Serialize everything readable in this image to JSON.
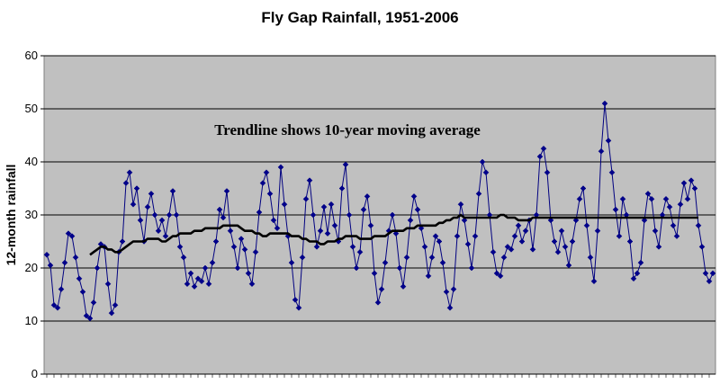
{
  "chart_data": {
    "type": "line",
    "title": "Fly Gap Rainfall, 1951-2006",
    "ylabel": "12-month rainfall",
    "xlabel": "",
    "annotation": "Trendline shows 10-year moving average",
    "ylim": [
      0,
      60
    ],
    "y_ticks": [
      0,
      10,
      20,
      30,
      40,
      50,
      60
    ],
    "grid": true,
    "legend": "none",
    "colors": {
      "plot_background": "#c0c0c0",
      "series": "#000080",
      "marker": "#00008b",
      "trend": "#000000"
    },
    "series": [
      {
        "role": "rainfall",
        "values": [
          22.5,
          20.5,
          13,
          12.5,
          16,
          21,
          26.5,
          26,
          22,
          18,
          15.5,
          11,
          10.5,
          13.5,
          20,
          24.5,
          24,
          17,
          11.5,
          13,
          23,
          25,
          36,
          38,
          32,
          35,
          29,
          25,
          31.5,
          34,
          30,
          27,
          29,
          26,
          30,
          34.5,
          30,
          24,
          22,
          17,
          19,
          16.5,
          18,
          17.5,
          20,
          17,
          21,
          25,
          31,
          29.5,
          34.5,
          27,
          24,
          20,
          25.5,
          23.5,
          19,
          17,
          23,
          30.5,
          36,
          38,
          34,
          29,
          27.5,
          39,
          32,
          26,
          21,
          14,
          12.5,
          22,
          33,
          36.5,
          30,
          24,
          27,
          31.5,
          26.5,
          32,
          28,
          25,
          35,
          39.5,
          30,
          24,
          20,
          23,
          31,
          33.5,
          28,
          19,
          13.5,
          16,
          21,
          27,
          30,
          26.5,
          20,
          16.5,
          22,
          29,
          33.5,
          31,
          27.5,
          24,
          18.5,
          22,
          26,
          25,
          21,
          15.5,
          12.5,
          16,
          26,
          32,
          29,
          24.5,
          20,
          26,
          34,
          40,
          38,
          30,
          23,
          19,
          18.5,
          22,
          24,
          23.5,
          26,
          28,
          25,
          27,
          29,
          23.5,
          30,
          41,
          42.5,
          38,
          29,
          25,
          23,
          27,
          24,
          20.5,
          25,
          29,
          33,
          35,
          28,
          22,
          17.5,
          27,
          42,
          51,
          44,
          38,
          31,
          26,
          33,
          30,
          25,
          18,
          19,
          21,
          29,
          34,
          33,
          27,
          24,
          30,
          33,
          31.5,
          28,
          26,
          32,
          36,
          33,
          36.5,
          35,
          28,
          24,
          19,
          17.5,
          19
        ]
      },
      {
        "role": "trendline",
        "start_index": 12,
        "values": [
          22.5,
          23,
          23.5,
          24,
          24,
          23.5,
          23.5,
          23,
          23,
          23.5,
          24,
          24.5,
          25,
          25,
          25,
          25,
          25.5,
          25.5,
          25.5,
          25.5,
          25,
          25,
          25.5,
          26,
          26,
          26.5,
          26.5,
          26.5,
          26.5,
          27,
          27,
          27,
          27.5,
          27.5,
          27.5,
          27.5,
          27.5,
          28,
          28,
          28,
          28,
          28,
          27.5,
          27,
          27,
          27,
          26.5,
          26.5,
          26,
          26,
          26.5,
          26.5,
          26.5,
          26.5,
          26.5,
          26.5,
          26,
          26,
          26,
          25.5,
          25.5,
          25,
          25,
          25,
          24.5,
          24.5,
          25,
          25,
          25,
          25.5,
          25.5,
          26,
          26,
          26,
          26,
          25.5,
          25.5,
          25.5,
          25.5,
          26,
          26,
          26,
          26,
          26.5,
          27,
          27,
          27,
          27,
          27.5,
          27.5,
          27.5,
          28,
          28,
          28,
          28,
          28,
          28,
          28.5,
          28.5,
          29,
          29,
          29.5,
          29.5,
          30,
          29.5,
          29.5,
          29.5,
          29.5,
          29.5,
          29.5,
          29.5,
          29.5,
          29.5,
          29.5,
          30,
          30,
          29.5,
          29.5,
          29.5,
          29,
          29,
          29,
          29,
          29.5,
          29.5,
          29.5,
          29.5,
          29.5,
          29.5,
          29.5,
          29.5,
          29.5,
          29.5,
          29.5,
          29.5,
          29.5,
          29.5,
          29.5,
          29.5,
          29.5,
          29.5,
          29.5,
          29.5,
          29.5,
          29.5,
          29.5,
          29.5,
          29.5,
          29.5,
          29.5,
          29.5,
          29.5,
          29.5,
          29.5,
          29.5,
          29.5,
          29.5,
          29.5,
          29.5,
          29.5,
          29.5,
          29.5,
          29.5,
          29.5,
          29.5,
          29.5,
          29.5,
          29.5,
          29.5,
          29.5
        ]
      }
    ]
  }
}
